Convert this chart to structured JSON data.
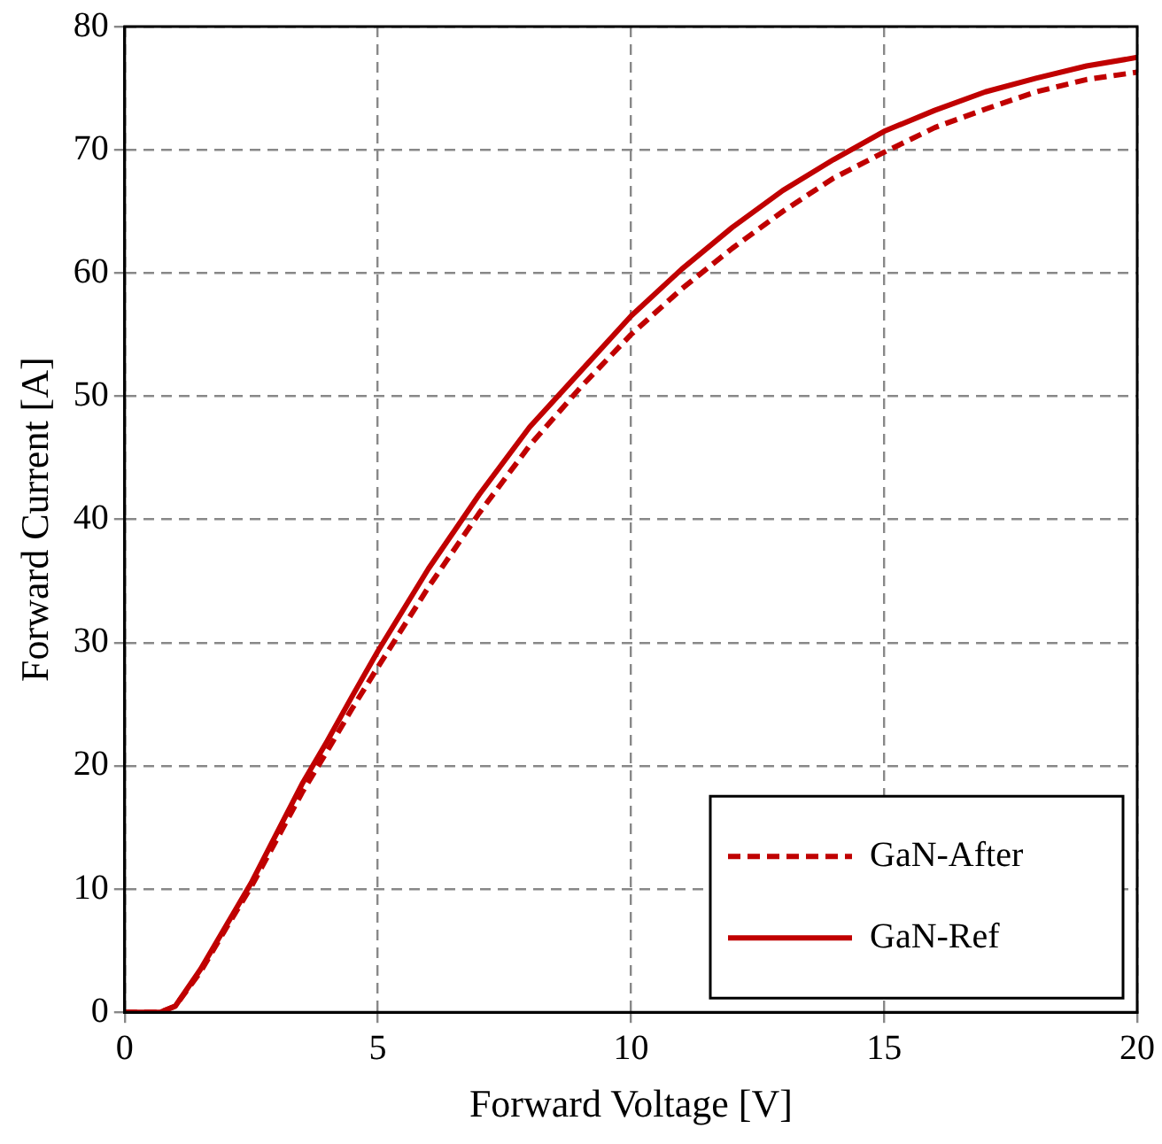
{
  "chart_data": {
    "type": "line",
    "xlabel": "Forward Voltage [V]",
    "ylabel": "Forward Current [A]",
    "xlim": [
      0,
      20
    ],
    "xticks": [
      0,
      5,
      10,
      15,
      20
    ],
    "ylim": [
      0,
      80
    ],
    "yticks": [
      0,
      10,
      20,
      30,
      40,
      50,
      60,
      70,
      80
    ],
    "grid": true,
    "legend": "bottom right",
    "marker": "none",
    "series": [
      {
        "name": "GaN-After",
        "color": "#c00000",
        "line_style": "dashed",
        "x": [
          0,
          0.7,
          1,
          1.5,
          2,
          2.5,
          3,
          3.5,
          4,
          4.5,
          5,
          6,
          7,
          8,
          9,
          10,
          11,
          12,
          13,
          14,
          15,
          16,
          17,
          18,
          19,
          20
        ],
        "values": [
          0,
          0,
          0.5,
          3.3,
          6.8,
          10.2,
          14,
          17.8,
          21.2,
          24.7,
          28,
          34.5,
          40.5,
          46,
          50.7,
          55,
          58.7,
          62,
          65,
          67.7,
          69.8,
          71.8,
          73.3,
          74.7,
          75.7,
          76.3
        ]
      },
      {
        "name": "GaN-Ref",
        "color": "#c00000",
        "line_style": "solid",
        "x": [
          0,
          0.7,
          1,
          1.5,
          2,
          2.5,
          3,
          3.5,
          4,
          4.5,
          5,
          6,
          7,
          8,
          9,
          10,
          11,
          12,
          13,
          14,
          15,
          16,
          17,
          18,
          19,
          20
        ],
        "values": [
          0,
          0,
          0.5,
          3.5,
          7,
          10.5,
          14.5,
          18.5,
          22,
          25.7,
          29.3,
          36,
          42,
          47.5,
          52,
          56.5,
          60.3,
          63.7,
          66.7,
          69.2,
          71.5,
          73.2,
          74.7,
          75.8,
          76.8,
          77.5
        ]
      }
    ]
  }
}
